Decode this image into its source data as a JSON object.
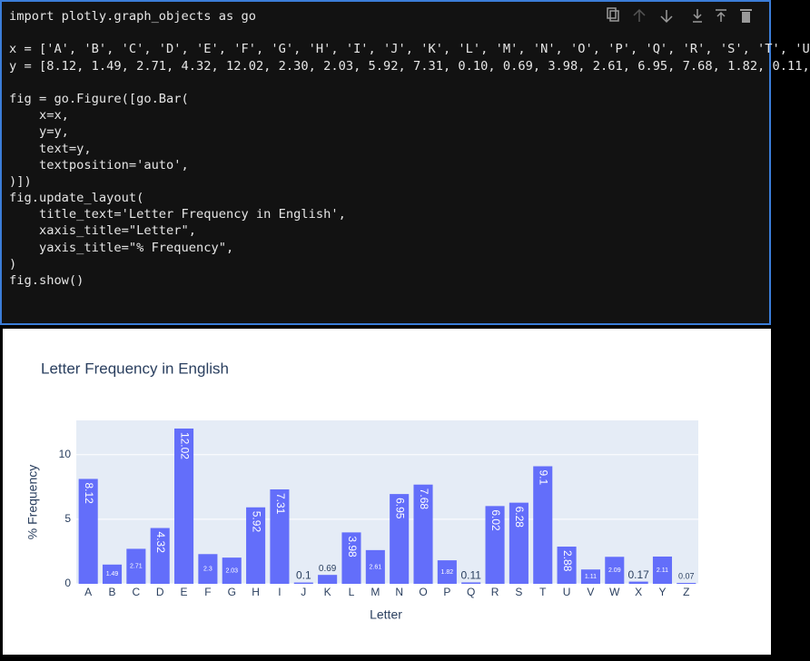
{
  "code_cell": {
    "lines": [
      "import plotly.graph_objects as go",
      "",
      "x = ['A', 'B', 'C', 'D', 'E', 'F', 'G', 'H', 'I', 'J', 'K', 'L', 'M', 'N', 'O', 'P', 'Q', 'R', 'S', 'T', 'U",
      "y = [8.12, 1.49, 2.71, 4.32, 12.02, 2.30, 2.03, 5.92, 7.31, 0.10, 0.69, 3.98, 2.61, 6.95, 7.68, 1.82, 0.11,",
      "",
      "fig = go.Figure([go.Bar(",
      "    x=x,",
      "    y=y,",
      "    text=y,",
      "    textposition='auto',",
      ")])",
      "fig.update_layout(",
      "    title_text='Letter Frequency in English',",
      "    xaxis_title=\"Letter\",",
      "    yaxis_title=\"% Frequency\",",
      ")",
      "fig.show()"
    ]
  },
  "chart_data": {
    "type": "bar",
    "title": "Letter Frequency in English",
    "x_label": "Letter",
    "y_label": "% Frequency",
    "categories": [
      "A",
      "B",
      "C",
      "D",
      "E",
      "F",
      "G",
      "H",
      "I",
      "J",
      "K",
      "L",
      "M",
      "N",
      "O",
      "P",
      "Q",
      "R",
      "S",
      "T",
      "U",
      "V",
      "W",
      "X",
      "Y",
      "Z"
    ],
    "values": [
      8.12,
      1.49,
      2.71,
      4.32,
      12.02,
      2.3,
      2.03,
      5.92,
      7.31,
      0.1,
      0.69,
      3.98,
      2.61,
      6.95,
      7.68,
      1.82,
      0.11,
      6.02,
      6.28,
      9.1,
      2.88,
      1.11,
      2.09,
      0.17,
      2.11,
      0.07
    ],
    "color": "#636efa",
    "ylim": [
      0,
      12.65
    ],
    "yticks": [
      0,
      5,
      10
    ],
    "grid": true
  }
}
